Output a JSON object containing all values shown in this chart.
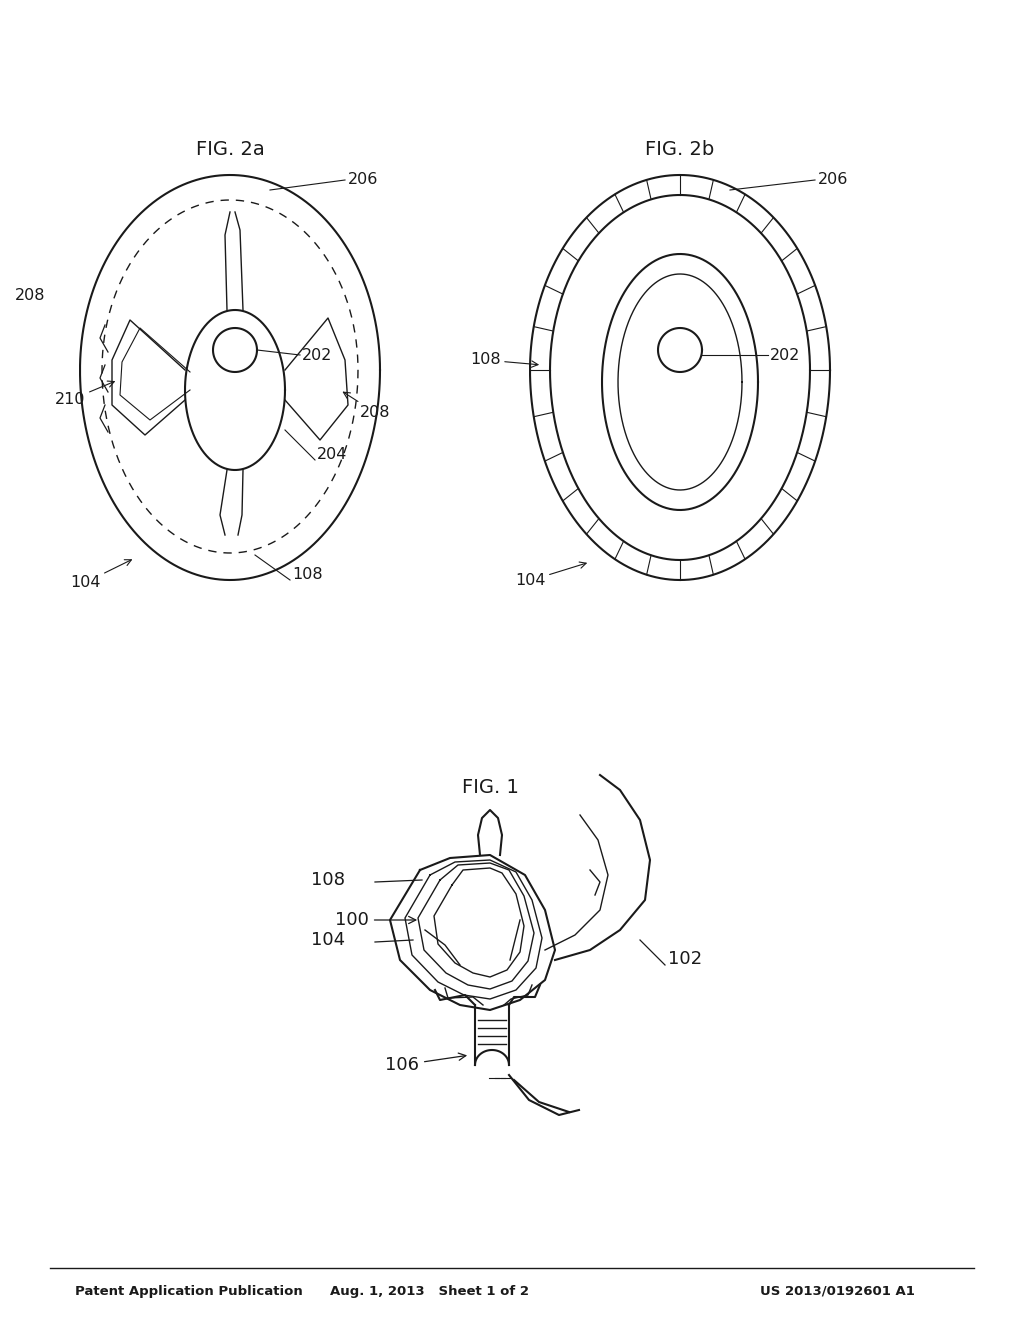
{
  "background_color": "#ffffff",
  "line_color": "#1a1a1a",
  "header_left": "Patent Application Publication",
  "header_center": "Aug. 1, 2013   Sheet 1 of 2",
  "header_right": "US 2013/0192601 A1",
  "fig1_label": "FIG. 1",
  "fig2a_label": "FIG. 2a",
  "fig2b_label": "FIG. 2b",
  "page_width": 10.24,
  "page_height": 13.2,
  "dpi": 100
}
